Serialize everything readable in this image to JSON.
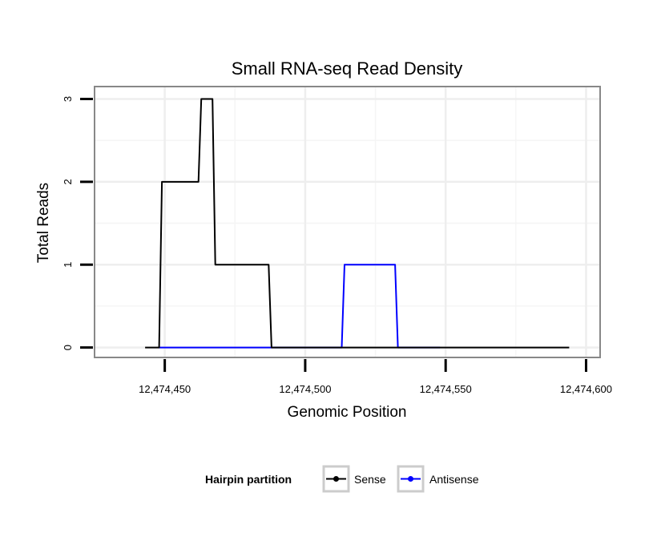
{
  "chart_data": {
    "type": "line",
    "title": "Small RNA-seq Read Density",
    "xlabel": "Genomic Position",
    "ylabel": "Total Reads",
    "xlim": [
      12474425,
      12474605
    ],
    "ylim": [
      -0.12,
      3.15
    ],
    "grid": true,
    "x_ticks": [
      12474450,
      12474500,
      12474550,
      12474600
    ],
    "x_tick_labels": [
      "12,474,450",
      "12,474,500",
      "12,474,550",
      "12,474,600"
    ],
    "y_ticks": [
      0,
      1,
      2,
      3
    ],
    "y_tick_labels": [
      "0",
      "1",
      "2",
      "3"
    ],
    "legend": {
      "title": "Hairpin partition",
      "position": "bottom"
    },
    "series": [
      {
        "name": "Sense",
        "color": "#000000",
        "x": [
          12474443,
          12474448,
          12474449,
          12474462,
          12474463,
          12474467,
          12474468,
          12474487,
          12474488,
          12474594
        ],
        "y": [
          0,
          0,
          2,
          2,
          3,
          3,
          1,
          1,
          0,
          0
        ]
      },
      {
        "name": "Antisense",
        "color": "#0000ff",
        "x": [
          12474448,
          12474513,
          12474514,
          12474532,
          12474533,
          12474548
        ],
        "y": [
          0,
          0,
          1,
          1,
          0,
          0
        ]
      }
    ]
  }
}
